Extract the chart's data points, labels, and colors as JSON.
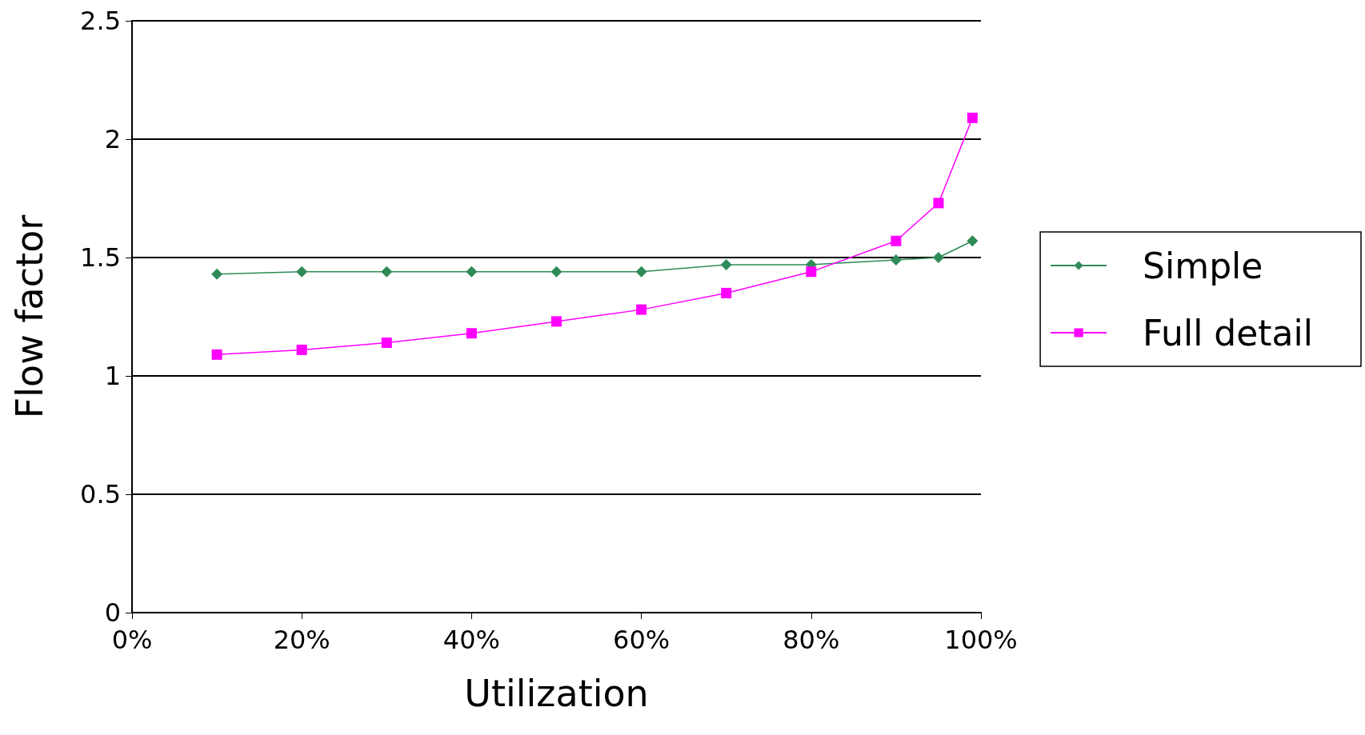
{
  "chart_data": {
    "type": "line",
    "xlabel": "Utilization",
    "ylabel": "Flow factor",
    "x": [
      10,
      20,
      30,
      40,
      50,
      60,
      70,
      80,
      90,
      95,
      99
    ],
    "series": [
      {
        "name": "Simple",
        "color": "#2e8b57",
        "marker": "diamond",
        "values": [
          1.43,
          1.44,
          1.44,
          1.44,
          1.44,
          1.44,
          1.47,
          1.47,
          1.49,
          1.5,
          1.57
        ]
      },
      {
        "name": "Full detail",
        "color": "#ff00ff",
        "marker": "square",
        "values": [
          1.09,
          1.11,
          1.14,
          1.18,
          1.23,
          1.28,
          1.35,
          1.44,
          1.57,
          1.73,
          2.09
        ]
      }
    ],
    "xlim": [
      0,
      100
    ],
    "xticks": [
      {
        "value": 0,
        "label": "0%"
      },
      {
        "value": 20,
        "label": "20%"
      },
      {
        "value": 40,
        "label": "40%"
      },
      {
        "value": 60,
        "label": "60%"
      },
      {
        "value": 80,
        "label": "80%"
      },
      {
        "value": 100,
        "label": "100%"
      }
    ],
    "ylim": [
      0,
      2.5
    ],
    "yticks": [
      0,
      0.5,
      1,
      1.5,
      2,
      2.5
    ],
    "grid": "y",
    "legend": "right",
    "line_style": "solid"
  }
}
